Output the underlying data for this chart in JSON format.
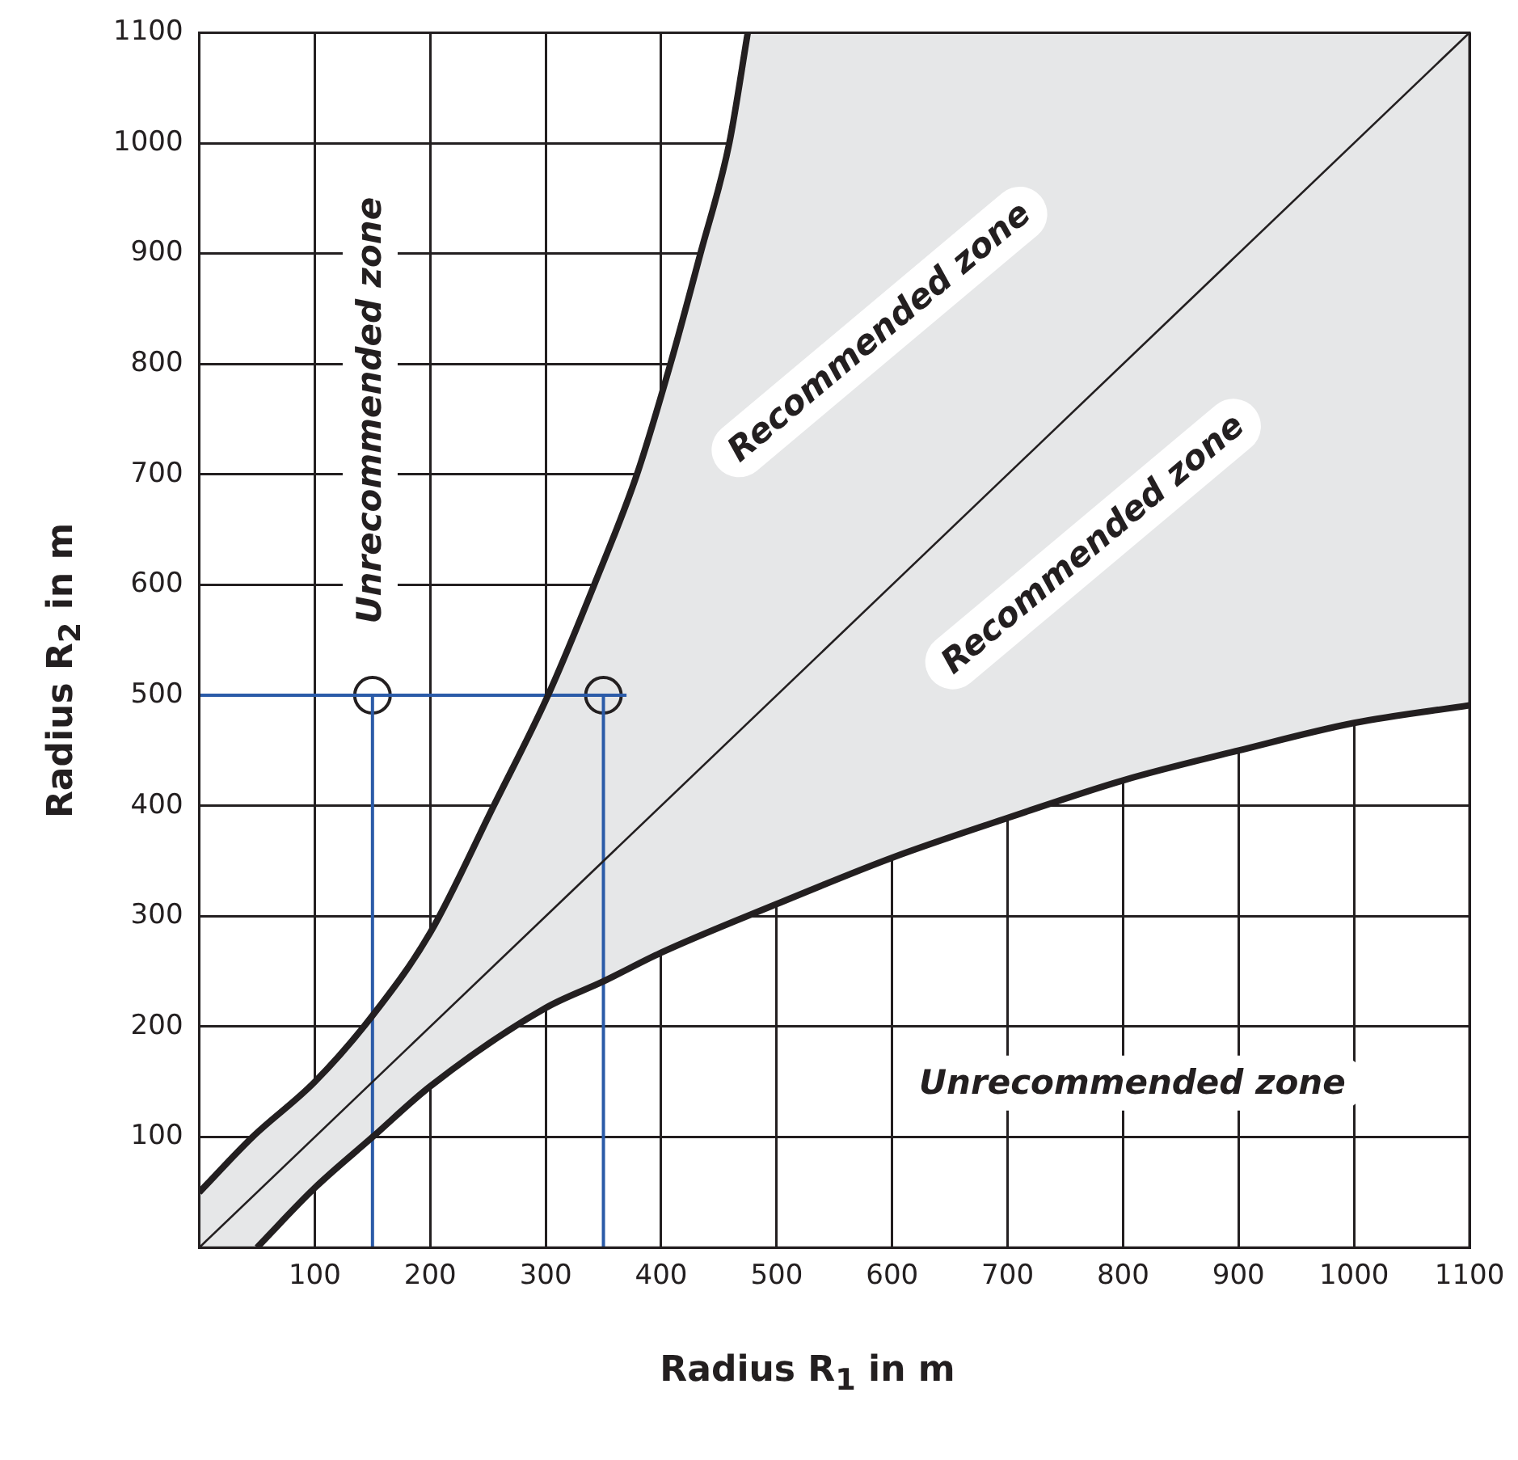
{
  "chart_data": {
    "type": "line",
    "xlabel": "Radius R$_{1}$ in m",
    "ylabel": "Radius R$_{2}$ in m",
    "xlim": [
      0,
      1100
    ],
    "ylim": [
      0,
      1100
    ],
    "xticks": [
      100,
      200,
      300,
      400,
      500,
      600,
      700,
      800,
      900,
      1000,
      1100
    ],
    "yticks": [
      100,
      200,
      300,
      400,
      500,
      600,
      700,
      800,
      900,
      1000,
      1100
    ],
    "grid": true,
    "legend": false,
    "marker": "none",
    "line_style": "solid",
    "series": [
      {
        "color": "#231f20",
        "x": [
          0,
          46,
          100,
          150,
          200,
          255,
          302,
          342,
          379,
          408,
          434,
          459,
          475
        ],
        "values": [
          50,
          100,
          150,
          210,
          285,
          400,
          500,
          600,
          700,
          800,
          900,
          1000,
          1100
        ]
      },
      {
        "color": "#231f20",
        "x": [
          50,
          100,
          150,
          200,
          300,
          350,
          400,
          500,
          600,
          700,
          800,
          900,
          1000,
          1100
        ],
        "values": [
          0,
          54,
          100,
          146,
          217,
          241,
          267,
          311,
          353,
          389,
          423,
          450,
          475,
          491
        ]
      },
      {
        "color": "#231f20",
        "x": [
          0,
          1100
        ],
        "values": [
          0,
          1100
        ]
      },
      {
        "color": "#2b5ba8",
        "x": [
          0,
          370
        ],
        "values": [
          500,
          500
        ]
      },
      {
        "color": "#2b5ba8",
        "x": [
          150,
          150
        ],
        "values": [
          0,
          500
        ]
      },
      {
        "color": "#2b5ba8",
        "x": [
          350,
          350
        ],
        "values": [
          0,
          500
        ]
      },
      {
        "type": "scatter",
        "marker": "circle",
        "color": "#231f20",
        "x": [
          150,
          350
        ],
        "values": [
          500,
          500
        ]
      }
    ],
    "annotations": [
      "Unrecommended zone",
      "Recommended zone",
      "Recommended zone",
      "Unrecommended zone"
    ]
  }
}
